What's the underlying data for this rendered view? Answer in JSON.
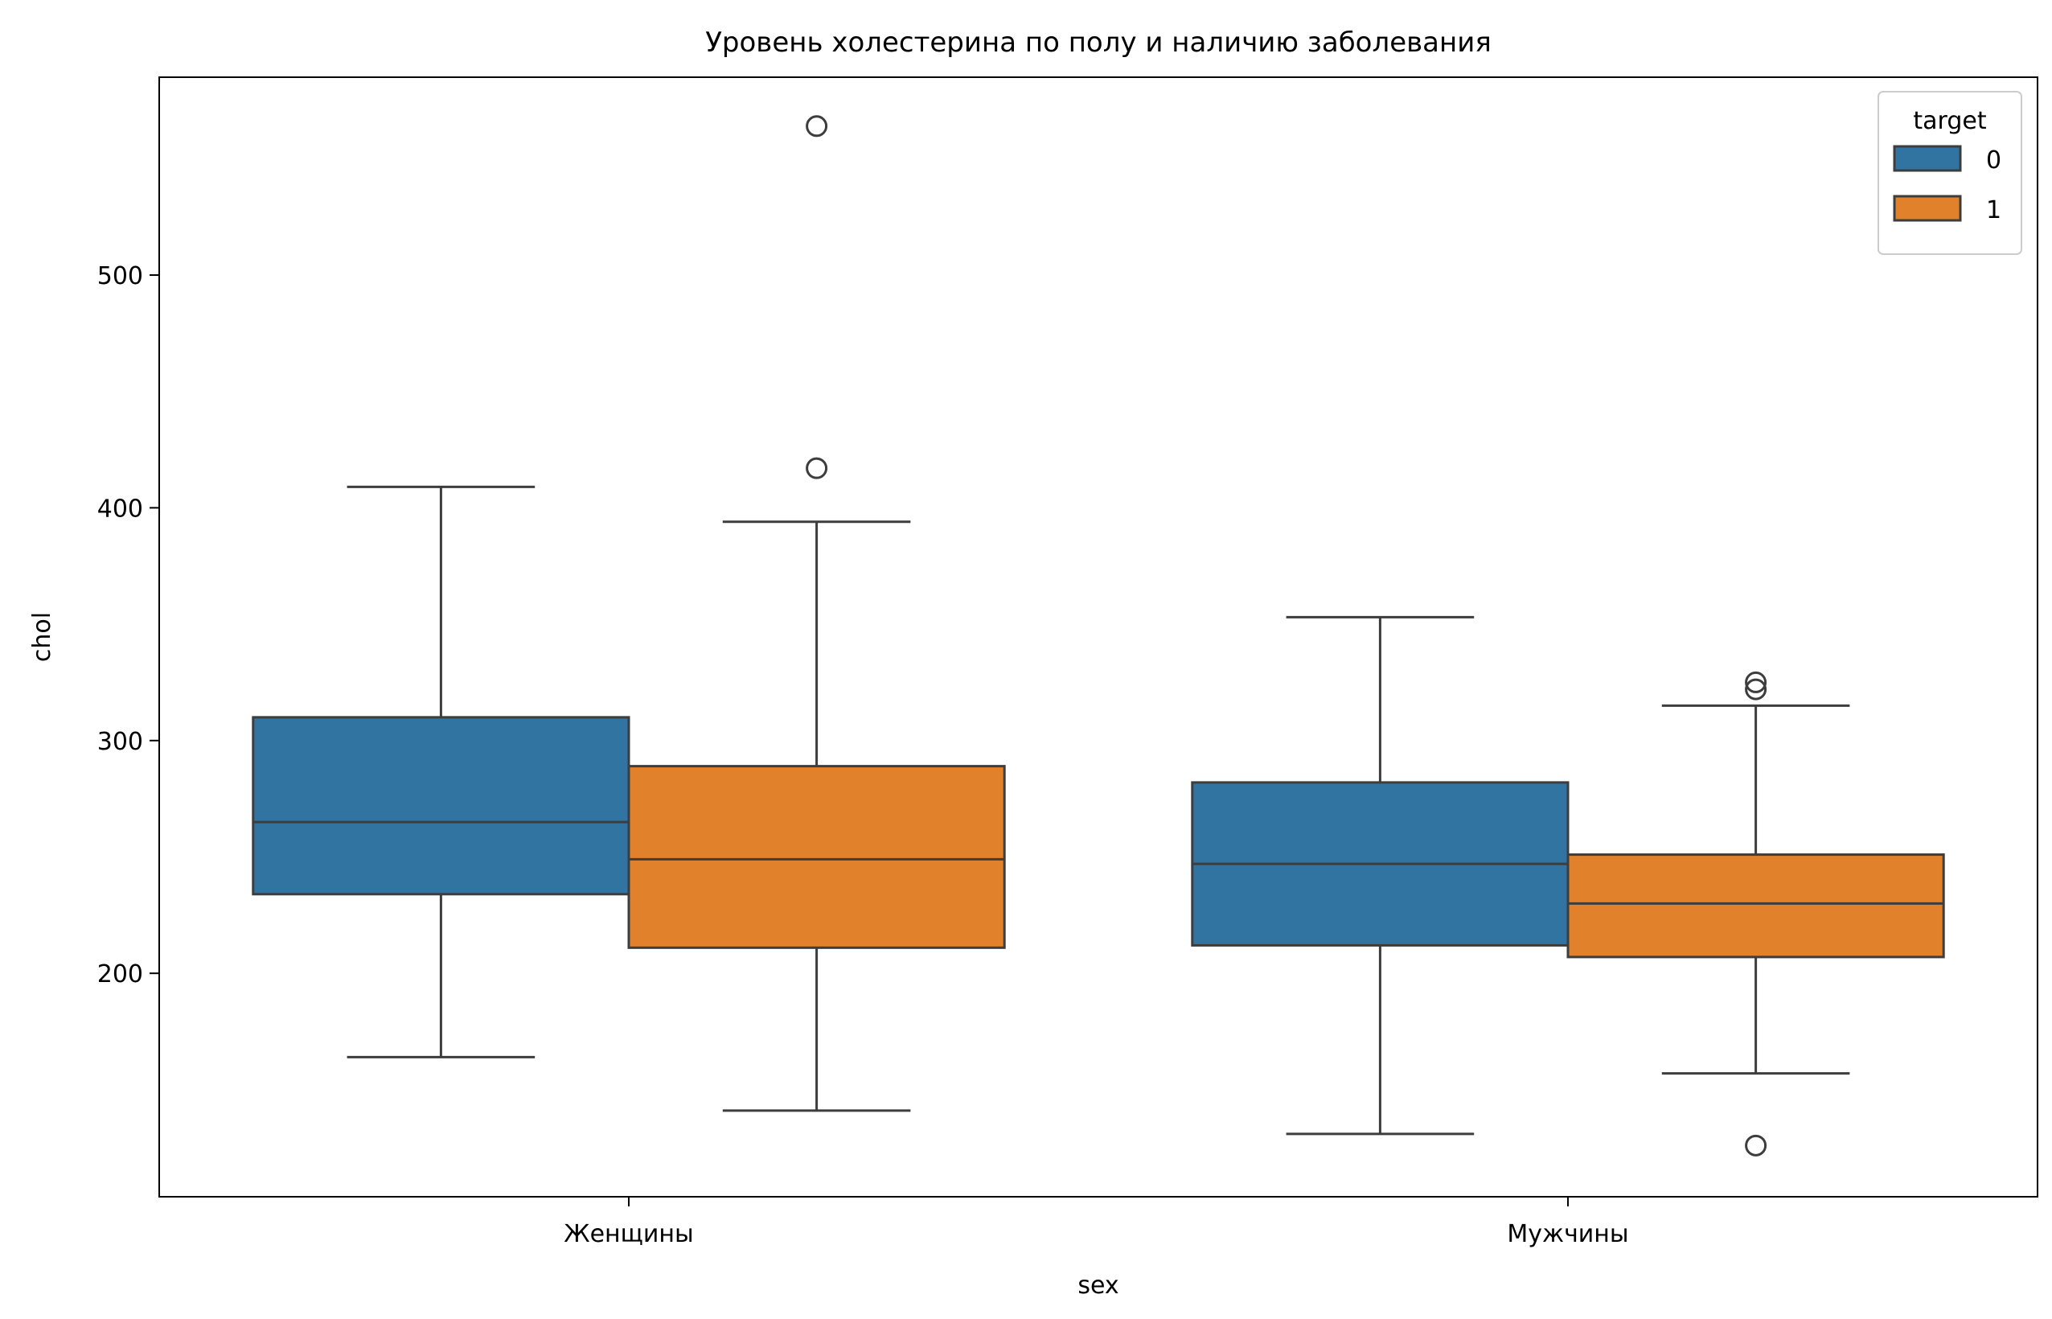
{
  "chart_data": {
    "type": "box",
    "title": "Уровень холестерина по полу и наличию заболевания",
    "xlabel": "sex",
    "ylabel": "chol",
    "categories": [
      "Женщины",
      "Мужчины"
    ],
    "yticks": [
      200,
      300,
      400,
      500
    ],
    "ylim": [
      104,
      585
    ],
    "legend": {
      "title": "target",
      "placement": "top-right"
    },
    "series": [
      {
        "name": "0",
        "color": "#3274a1",
        "boxes": [
          {
            "category": "Женщины",
            "whisker_low": 164,
            "q1": 234,
            "median": 265,
            "q3": 310,
            "whisker_high": 409,
            "outliers": []
          },
          {
            "category": "Мужчины",
            "whisker_low": 131,
            "q1": 212,
            "median": 247,
            "q3": 282,
            "whisker_high": 353,
            "outliers": []
          }
        ]
      },
      {
        "name": "1",
        "color": "#e1812c",
        "boxes": [
          {
            "category": "Женщины",
            "whisker_low": 141,
            "q1": 211,
            "median": 249,
            "q3": 289,
            "whisker_high": 394,
            "outliers": [
              417,
              564
            ]
          },
          {
            "category": "Мужчины",
            "whisker_low": 157,
            "q1": 207,
            "median": 230,
            "q3": 251,
            "whisker_high": 315,
            "outliers": [
              126,
              322,
              325
            ]
          }
        ]
      }
    ],
    "grid": false
  }
}
